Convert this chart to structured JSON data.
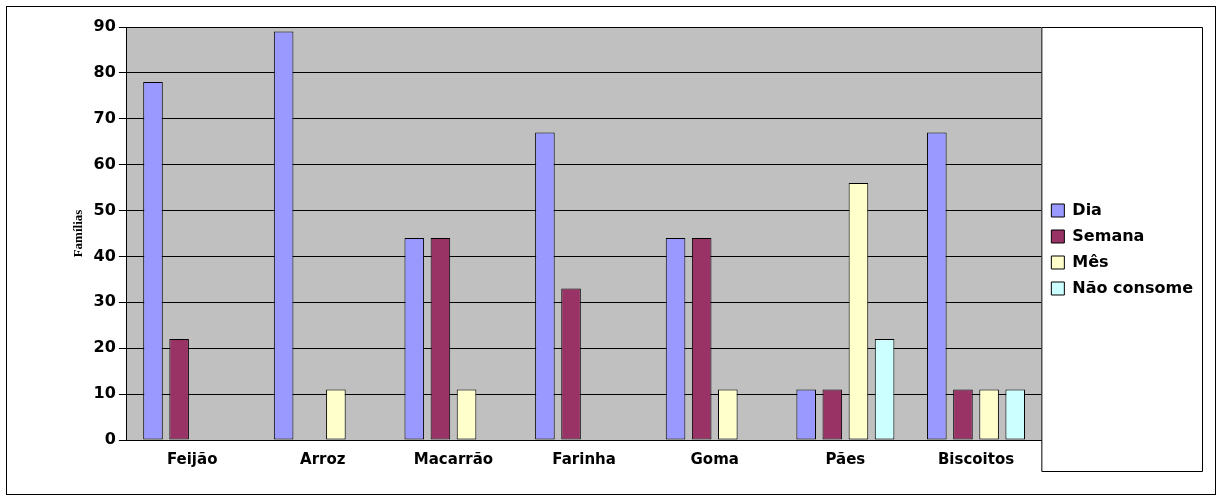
{
  "chart_data": {
    "type": "bar",
    "ylabel": "Famílias",
    "categories": [
      "Feijão",
      "Arroz",
      "Macarrão",
      "Farinha",
      "Goma",
      "Pães",
      "Biscoitos"
    ],
    "series": [
      {
        "name": "Dia",
        "color": "#9999ff",
        "values": [
          78,
          89,
          44,
          67,
          44,
          11,
          67
        ]
      },
      {
        "name": "Semana",
        "color": "#993366",
        "values": [
          22,
          0,
          44,
          33,
          44,
          11,
          11
        ]
      },
      {
        "name": "Mês",
        "color": "#ffffcc",
        "values": [
          0,
          11,
          11,
          0,
          11,
          56,
          11
        ]
      },
      {
        "name": "Não consome",
        "color": "#ccffff",
        "values": [
          0,
          0,
          0,
          0,
          0,
          22,
          11
        ]
      }
    ],
    "ylim": [
      0,
      90
    ],
    "yticks": [
      0,
      10,
      20,
      30,
      40,
      50,
      60,
      70,
      80,
      90
    ],
    "grid": "y",
    "legend": "right"
  }
}
